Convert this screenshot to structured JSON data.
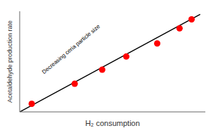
{
  "chart_data": {
    "type": "scatter",
    "xlabel": "H₂ consumption",
    "ylabel": "Acetaldehyde production rate",
    "series": [
      {
        "type": "scatter",
        "color": "#ff0000",
        "marker": "circle",
        "x": [
          0.07,
          0.32,
          0.48,
          0.62,
          0.8,
          0.93,
          1.0
        ],
        "values": [
          0.08,
          0.28,
          0.42,
          0.55,
          0.68,
          0.83,
          0.92
        ]
      },
      {
        "type": "line",
        "color": "black",
        "line_style": "solid",
        "x": [
          0.0,
          1.05
        ],
        "values": [
          0.0,
          0.97
        ]
      }
    ],
    "xlim": [
      0.0,
      1.08
    ],
    "ylim": [
      0.0,
      1.0
    ],
    "tick_labels": false,
    "grid": false,
    "annotations": [
      "Decreasing ceria particle size"
    ]
  }
}
